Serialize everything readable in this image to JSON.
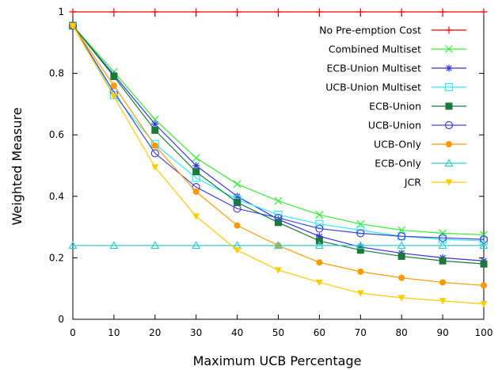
{
  "chart_data": {
    "type": "line",
    "xlabel": "Maximum UCB Percentage",
    "ylabel": "Weighted Measure",
    "xlim": [
      0,
      100
    ],
    "ylim": [
      0,
      1
    ],
    "x_ticks": [
      "0",
      "10",
      "20",
      "30",
      "40",
      "50",
      "60",
      "70",
      "80",
      "90",
      "100"
    ],
    "y_ticks": [
      "0",
      "0.2",
      "0.4",
      "0.6",
      "0.8",
      "1"
    ],
    "grid": false,
    "legend_position": "top-right",
    "x": [
      0,
      10,
      20,
      30,
      40,
      50,
      60,
      70,
      80,
      90,
      100
    ],
    "series": [
      {
        "name": "No Pre-emption Cost",
        "color": "#ff0000",
        "marker": "plus",
        "values": [
          1,
          1,
          1,
          1,
          1,
          1,
          1,
          1,
          1,
          1,
          1
        ]
      },
      {
        "name": "Combined Multiset",
        "color": "#33ee33",
        "marker": "cross",
        "values": [
          0.955,
          0.805,
          0.65,
          0.525,
          0.44,
          0.385,
          0.34,
          0.31,
          0.29,
          0.28,
          0.275
        ]
      },
      {
        "name": "ECB-Union Multiset",
        "color": "#3333dd",
        "marker": "star",
        "values": [
          0.955,
          0.795,
          0.635,
          0.5,
          0.4,
          0.325,
          0.27,
          0.235,
          0.215,
          0.2,
          0.19
        ]
      },
      {
        "name": "UCB-Union Multiset",
        "color": "#33e8ff",
        "marker": "open-square",
        "values": [
          0.955,
          0.73,
          0.57,
          0.46,
          0.39,
          0.34,
          0.31,
          0.29,
          0.27,
          0.26,
          0.255
        ]
      },
      {
        "name": "ECB-Union",
        "color": "#1b7a3a",
        "marker": "filled-square",
        "values": [
          0.955,
          0.79,
          0.615,
          0.48,
          0.38,
          0.315,
          0.255,
          0.225,
          0.205,
          0.19,
          0.18
        ]
      },
      {
        "name": "UCB-Union",
        "color": "#4444cc",
        "marker": "open-circle",
        "values": [
          0.955,
          0.74,
          0.54,
          0.43,
          0.36,
          0.33,
          0.295,
          0.28,
          0.27,
          0.265,
          0.26
        ]
      },
      {
        "name": "UCB-Only",
        "color": "#ff9900",
        "marker": "filled-circle",
        "values": [
          0.955,
          0.76,
          0.565,
          0.415,
          0.305,
          0.24,
          0.185,
          0.155,
          0.135,
          0.12,
          0.11
        ]
      },
      {
        "name": "ECB-Only",
        "color": "#33cccc",
        "marker": "open-triangle",
        "values": [
          0.24,
          0.24,
          0.24,
          0.24,
          0.24,
          0.24,
          0.24,
          0.24,
          0.24,
          0.24,
          0.24
        ]
      },
      {
        "name": "JCR",
        "color": "#ffcc00",
        "marker": "filled-triangle-down",
        "values": [
          0.955,
          0.725,
          0.495,
          0.335,
          0.225,
          0.16,
          0.12,
          0.085,
          0.07,
          0.06,
          0.05
        ]
      }
    ]
  }
}
